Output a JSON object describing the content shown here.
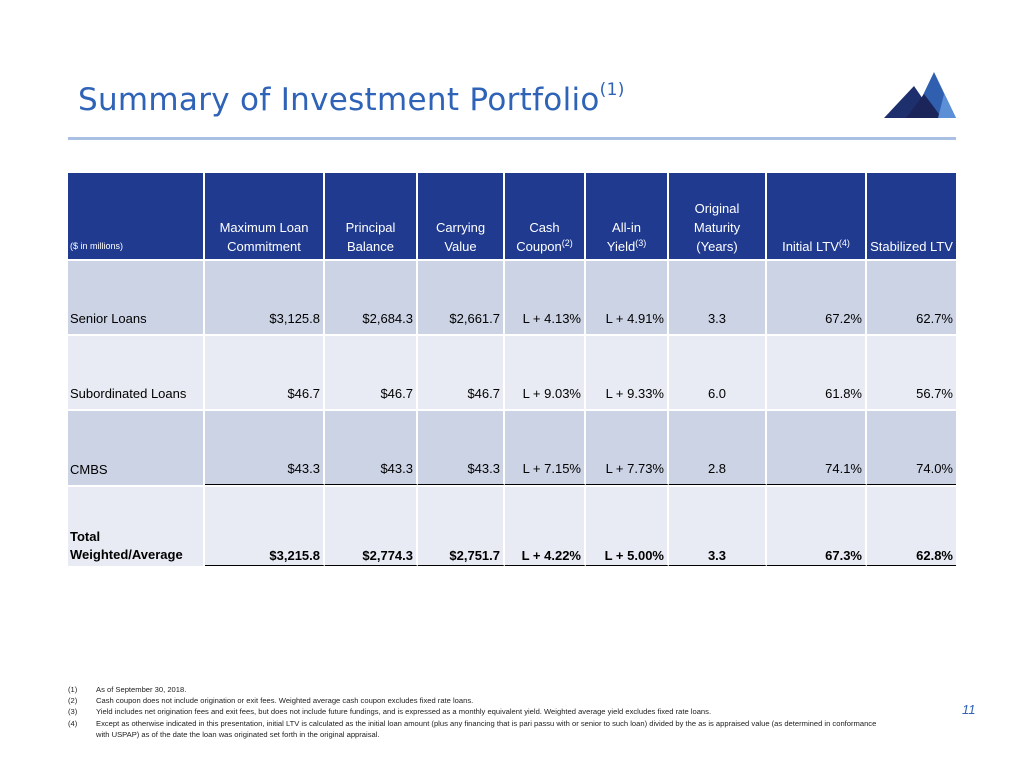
{
  "page": {
    "title": "Summary of Investment Portfolio",
    "title_footnote": "(1)",
    "page_number": "11",
    "accent_color": "#2e63b8",
    "header_color": "#1f3a8f"
  },
  "table": {
    "columns": [
      {
        "lines": [
          "($ in millions)"
        ],
        "sup": ""
      },
      {
        "lines": [
          "Maximum Loan",
          "Commitment"
        ],
        "sup": ""
      },
      {
        "lines": [
          "Principal",
          "Balance"
        ],
        "sup": ""
      },
      {
        "lines": [
          "Carrying",
          "Value"
        ],
        "sup": ""
      },
      {
        "lines": [
          "Cash",
          "Coupon"
        ],
        "sup": "(2)"
      },
      {
        "lines": [
          "All-in",
          "Yield"
        ],
        "sup": "(3)"
      },
      {
        "lines": [
          "Original",
          "Maturity",
          "(Years)"
        ],
        "sup": ""
      },
      {
        "lines": [
          "Initial LTV"
        ],
        "sup": "(4)"
      },
      {
        "lines": [
          "Stabilized LTV"
        ],
        "sup": ""
      }
    ],
    "rows": [
      {
        "label": "Senior Loans",
        "max_commitment": "$3,125.8",
        "principal": "$2,684.3",
        "carrying": "$2,661.7",
        "cash_coupon": "L + 4.13%",
        "all_in_yield": "L + 4.91%",
        "maturity": "3.3",
        "initial_ltv": "67.2%",
        "stabilized_ltv": "62.7%"
      },
      {
        "label": "Subordinated Loans",
        "max_commitment": "$46.7",
        "principal": "$46.7",
        "carrying": "$46.7",
        "cash_coupon": "L + 9.03%",
        "all_in_yield": "L + 9.33%",
        "maturity": "6.0",
        "initial_ltv": "61.8%",
        "stabilized_ltv": "56.7%"
      },
      {
        "label": "CMBS",
        "max_commitment": "$43.3",
        "principal": "$43.3",
        "carrying": "$43.3",
        "cash_coupon": "L + 7.15%",
        "all_in_yield": "L + 7.73%",
        "maturity": "2.8",
        "initial_ltv": "74.1%",
        "stabilized_ltv": "74.0%"
      }
    ],
    "total": {
      "label_line1": "Total",
      "label_line2": "Weighted/Average",
      "max_commitment": "$3,215.8",
      "principal": "$2,774.3",
      "carrying": "$2,751.7",
      "cash_coupon": "L + 4.22%",
      "all_in_yield": "L + 5.00%",
      "maturity": "3.3",
      "initial_ltv": "67.3%",
      "stabilized_ltv": "62.8%"
    }
  },
  "footnotes": [
    {
      "num": "(1)",
      "text": "As of September 30, 2018."
    },
    {
      "num": "(2)",
      "text": "Cash coupon does not include origination or exit fees. Weighted average cash coupon excludes fixed rate loans."
    },
    {
      "num": "(3)",
      "text": "Yield includes net origination fees and exit fees, but does not include future fundings, and is expressed as a monthly equivalent yield.  Weighted average yield excludes fixed rate loans."
    },
    {
      "num": "(4)",
      "text": "Except as otherwise indicated in this presentation, initial LTV is calculated as the initial loan amount (plus any financing that is pari passu with or senior to such loan) divided by the as is appraised value (as determined in conformance with USPAP) as of the date the loan was originated set forth in the original appraisal."
    }
  ]
}
